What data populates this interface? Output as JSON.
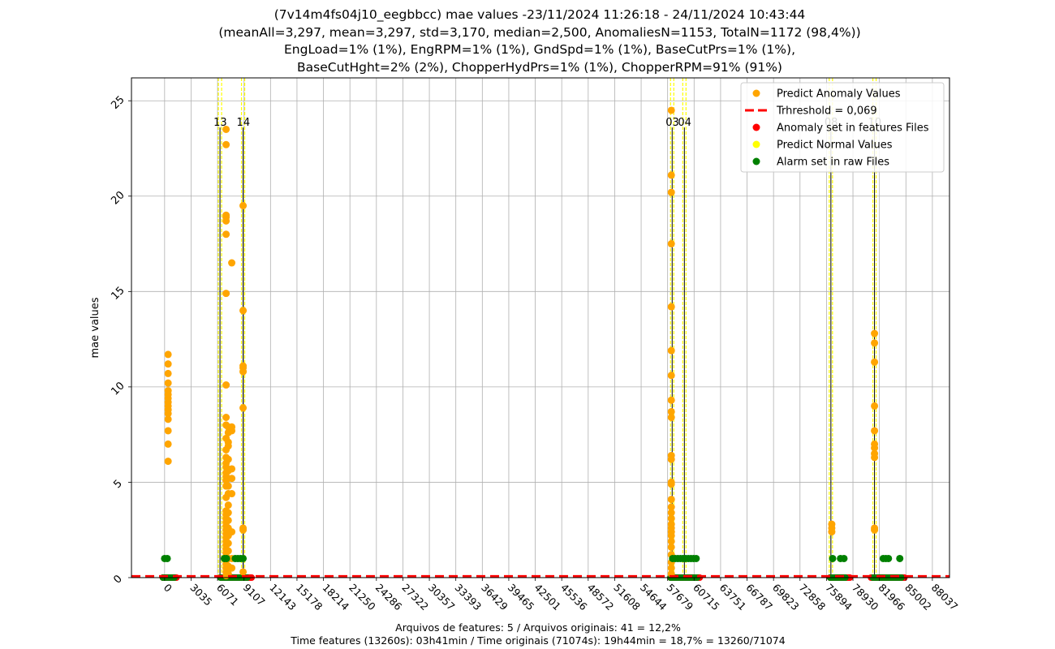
{
  "title_lines": [
    "(7v14m4fs04j10_eegbbcc) mae values -23/11/2024 11:26:18 - 24/11/2024 10:43:44",
    "(meanAll=3,297, mean=3,297, std=3,170, median=2,500, AnomaliesN=1153, TotalN=1172 (98,4%))",
    "EngLoad=1% (1%), EngRPM=1% (1%), GndSpd=1% (1%), BaseCutPrs=1% (1%),",
    "BaseCutHght=2% (2%), ChopperHydPrs=1% (1%), ChopperRPM=91% (91%)"
  ],
  "footer_lines": [
    "Arquivos de features: 5 / Arquivos originais: 41 = 12,2%",
    "Time features (13260s): 03h41min / Time originais (71074s): 19h44min = 18,7% = 13260/71074"
  ],
  "chart_data": {
    "type": "scatter",
    "ylabel": "mae values",
    "xlim": [
      -3800,
      90000
    ],
    "ylim": [
      0,
      26.2
    ],
    "grid": true,
    "legend_position": "top-right",
    "x_ticks": [
      0,
      3035,
      6071,
      9107,
      12143,
      15178,
      18214,
      21250,
      24286,
      27322,
      30357,
      33393,
      36429,
      39465,
      42501,
      45536,
      48572,
      51608,
      54644,
      57679,
      60715,
      63751,
      66787,
      69823,
      72858,
      75894,
      78930,
      81966,
      85002,
      88037
    ],
    "y_ticks": [
      0,
      5,
      10,
      15,
      20,
      25
    ],
    "threshold": 0.069,
    "colors": {
      "anomaly": "#ffa500",
      "threshold": "#ff0000",
      "feature_anomaly": "#ff0000",
      "normal": "#ffff00",
      "alarm": "#008000",
      "file_line": "#000000",
      "file_start": "#ffff00"
    },
    "legend": [
      {
        "label": "Predict Anomaly Values",
        "kind": "dot",
        "color": "#ffa500"
      },
      {
        "label": "Trhreshold = 0,069",
        "kind": "dash",
        "color": "#ff0000"
      },
      {
        "label": "Anomaly set in features Files",
        "kind": "dot",
        "color": "#ff0000"
      },
      {
        "label": "Predict Normal Values",
        "kind": "dot",
        "color": "#ffff00"
      },
      {
        "label": "Alarm set in raw Files",
        "kind": "dot",
        "color": "#008000"
      }
    ],
    "file_markers": [
      {
        "label": "13",
        "x": 6350,
        "top": 23.6
      },
      {
        "label": "14",
        "x": 9000,
        "top": 23.6
      },
      {
        "label": "03",
        "x": 58200,
        "top": 23.6
      },
      {
        "label": "04",
        "x": 59600,
        "top": 23.6
      },
      {
        "label": "08",
        "x": 76400,
        "top": 23.6
      },
      {
        "label": "10",
        "x": 81400,
        "top": 23.6
      }
    ],
    "anomaly_series": [
      {
        "x": 400,
        "values": [
          6.1,
          7.0,
          7.7,
          8.3,
          8.6,
          8.8,
          9.0,
          9.2,
          9.4,
          9.6,
          9.8,
          10.2,
          10.7,
          11.2,
          11.7
        ]
      },
      {
        "x": 7050,
        "values": [
          0.1,
          0.3,
          0.5,
          0.7,
          0.9,
          1.1,
          1.3,
          1.5,
          1.7,
          1.9,
          2.1,
          2.3,
          2.5,
          2.7,
          2.9,
          3.1,
          3.3,
          3.5,
          4.2,
          4.8,
          5.1,
          5.3,
          5.5,
          5.8,
          6.0,
          6.3,
          6.7,
          7.3,
          8.0,
          8.4,
          10.1,
          14.9,
          18.0,
          18.7,
          18.9,
          19.0,
          22.7,
          23.5
        ]
      },
      {
        "x": 7300,
        "values": [
          0.2,
          0.6,
          1.0,
          1.4,
          1.8,
          2.2,
          2.6,
          3.0,
          3.4,
          3.8,
          4.4,
          4.8,
          5.2,
          5.6,
          6.2,
          6.9,
          7.1,
          7.6,
          7.9
        ]
      },
      {
        "x": 7700,
        "values": [
          0.5,
          1.0,
          2.4,
          4.4,
          5.2,
          5.7,
          7.7,
          7.9,
          16.5
        ]
      },
      {
        "x": 9000,
        "values": [
          0.3,
          2.5,
          2.6,
          8.9,
          10.8,
          11.0,
          11.1,
          14.0,
          19.5
        ]
      },
      {
        "x": 58100,
        "values": [
          0.2,
          0.5,
          0.8,
          1.2,
          1.6,
          1.9,
          2.2,
          2.4,
          2.6,
          2.8,
          3.1,
          3.4,
          3.7,
          4.1,
          4.9,
          5.0,
          6.2,
          6.4,
          8.4,
          8.7,
          9.3,
          10.6,
          11.9,
          14.2,
          17.5,
          20.2,
          21.1,
          24.5
        ]
      },
      {
        "x": 76500,
        "values": [
          2.4,
          2.6,
          2.8
        ]
      },
      {
        "x": 81400,
        "values": [
          2.5,
          2.6,
          6.3,
          6.5,
          6.8,
          7.0,
          7.7,
          9.0,
          11.3,
          12.3,
          12.8
        ]
      }
    ],
    "alarm_points": [
      [
        0,
        1.0
      ],
      [
        300,
        1.0
      ],
      [
        6850,
        1.0
      ],
      [
        7100,
        1.0
      ],
      [
        8100,
        1.0
      ],
      [
        8400,
        1.0
      ],
      [
        8700,
        1.0
      ],
      [
        9000,
        1.0
      ],
      [
        58250,
        1.0
      ],
      [
        58550,
        1.0
      ],
      [
        58850,
        1.0
      ],
      [
        59150,
        1.0
      ],
      [
        59450,
        1.0
      ],
      [
        59750,
        1.0
      ],
      [
        60050,
        1.0
      ],
      [
        60350,
        1.0
      ],
      [
        60650,
        1.0
      ],
      [
        60950,
        1.0
      ],
      [
        76600,
        1.0
      ],
      [
        77500,
        1.0
      ],
      [
        77900,
        1.0
      ],
      [
        82400,
        1.0
      ],
      [
        82700,
        1.0
      ],
      [
        83000,
        1.0
      ],
      [
        84300,
        1.0
      ]
    ],
    "feature_anomaly_runs": [
      {
        "from": -200,
        "to": 1400
      },
      {
        "from": 6500,
        "to": 10000
      },
      {
        "from": 58000,
        "to": 61400
      },
      {
        "from": 76300,
        "to": 78600
      },
      {
        "from": 81000,
        "to": 84900
      }
    ],
    "alarm_baseline_runs": [
      {
        "from": -200,
        "to": 1200
      },
      {
        "from": 6400,
        "to": 9600
      },
      {
        "from": 58000,
        "to": 61200
      },
      {
        "from": 76300,
        "to": 78200
      },
      {
        "from": 81200,
        "to": 84600
      }
    ]
  }
}
